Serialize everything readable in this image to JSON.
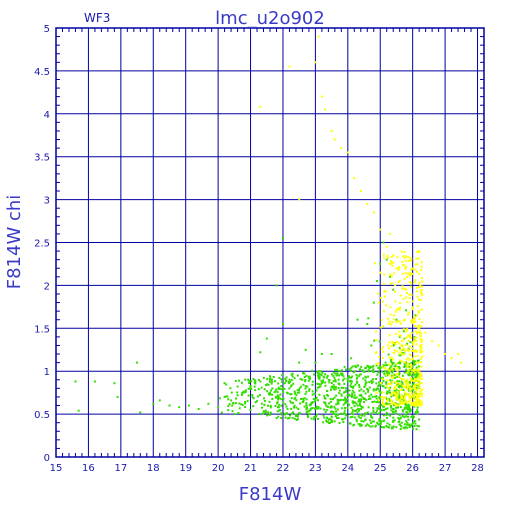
{
  "chart_data": {
    "type": "scatter",
    "title": "lmc_u2o902",
    "corner_label": "WF3",
    "xlabel": "F814W",
    "ylabel": "F814W chi",
    "xlim": [
      15,
      28.2
    ],
    "ylim": [
      0,
      5
    ],
    "x_ticks": [
      "15",
      "16",
      "17",
      "18",
      "19",
      "20",
      "21",
      "22",
      "23",
      "24",
      "25",
      "26",
      "27",
      "28"
    ],
    "y_ticks": [
      "0",
      "0.5",
      "1",
      "1.5",
      "2",
      "2.5",
      "3",
      "3.5",
      "4",
      "4.5",
      "5"
    ],
    "grid": true,
    "colors": {
      "frame": "#0000a0",
      "grid": "#0000a0",
      "series_green": "#33dd00",
      "series_yellow": "#ffff00"
    },
    "series": [
      {
        "color": "#33dd00",
        "points": [
          [
            15.6,
            0.88
          ],
          [
            15.7,
            0.54
          ],
          [
            16.2,
            0.88
          ],
          [
            16.8,
            0.86
          ],
          [
            16.9,
            0.7
          ],
          [
            17.5,
            1.1
          ],
          [
            17.6,
            0.52
          ],
          [
            18.0,
            0.62
          ],
          [
            18.2,
            0.66
          ],
          [
            18.5,
            0.6
          ],
          [
            18.8,
            0.58
          ],
          [
            19.1,
            0.6
          ],
          [
            19.4,
            0.56
          ],
          [
            19.7,
            0.62
          ],
          [
            20.0,
            0.58
          ],
          [
            20.2,
            0.7
          ],
          [
            20.4,
            0.66
          ],
          [
            20.6,
            0.72
          ],
          [
            20.8,
            0.75
          ],
          [
            21.0,
            0.8
          ],
          [
            21.2,
            0.65
          ],
          [
            21.3,
            1.22
          ],
          [
            21.5,
            1.38
          ],
          [
            21.6,
            0.9
          ],
          [
            21.8,
            2.0
          ],
          [
            22.0,
            2.55
          ],
          [
            22.0,
            1.55
          ],
          [
            22.2,
            0.9
          ],
          [
            22.5,
            1.1
          ],
          [
            22.7,
            1.25
          ],
          [
            23.0,
            1.1
          ],
          [
            23.2,
            1.2
          ],
          [
            23.5,
            1.2
          ],
          [
            23.9,
            1.05
          ],
          [
            24.1,
            1.15
          ],
          [
            24.3,
            1.6
          ],
          [
            24.6,
            1.55
          ],
          [
            24.8,
            1.8
          ],
          [
            24.9,
            2.05
          ],
          [
            25.0,
            2.25
          ],
          [
            25.1,
            2.5
          ],
          [
            25.2,
            2.3
          ],
          [
            25.3,
            2.1
          ],
          [
            25.4,
            1.95
          ],
          [
            25.5,
            1.6
          ],
          [
            25.6,
            1.4
          ],
          [
            25.7,
            1.25
          ],
          [
            25.8,
            1.1
          ],
          [
            25.9,
            1.0
          ],
          [
            26.0,
            0.9
          ],
          [
            26.1,
            0.8
          ],
          [
            26.2,
            0.72
          ]
        ],
        "cloud": {
          "x_range": [
            20.0,
            26.2
          ],
          "y_range": [
            0.45,
            1.1
          ],
          "count": 1100,
          "weight_x_peak": 25.3
        }
      },
      {
        "color": "#ffff00",
        "points": [
          [
            21.3,
            4.08
          ],
          [
            22.2,
            4.55
          ],
          [
            22.5,
            3.0
          ],
          [
            23.0,
            4.6
          ],
          [
            23.1,
            4.9
          ],
          [
            23.2,
            4.2
          ],
          [
            23.3,
            4.05
          ],
          [
            23.5,
            3.8
          ],
          [
            23.6,
            3.7
          ],
          [
            23.8,
            3.6
          ],
          [
            24.0,
            3.55
          ],
          [
            24.2,
            3.25
          ],
          [
            24.4,
            3.1
          ],
          [
            24.6,
            2.95
          ],
          [
            24.8,
            2.85
          ],
          [
            25.0,
            2.65
          ],
          [
            25.2,
            2.45
          ],
          [
            25.3,
            2.6
          ],
          [
            25.4,
            2.35
          ],
          [
            25.5,
            2.2
          ],
          [
            25.6,
            2.05
          ],
          [
            25.8,
            1.95
          ],
          [
            26.0,
            1.6
          ],
          [
            26.2,
            1.5
          ],
          [
            26.4,
            1.45
          ],
          [
            26.6,
            1.35
          ],
          [
            26.8,
            1.3
          ],
          [
            27.0,
            1.2
          ],
          [
            27.2,
            1.15
          ],
          [
            27.4,
            1.2
          ],
          [
            27.5,
            1.1
          ]
        ],
        "cloud": {
          "x_range": [
            24.8,
            26.3
          ],
          "y_range": [
            0.6,
            2.4
          ],
          "count": 520,
          "weight_x_peak": 25.6
        }
      }
    ]
  }
}
